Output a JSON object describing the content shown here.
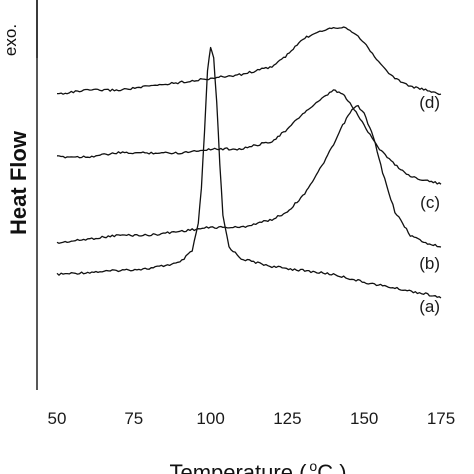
{
  "chart_data": {
    "type": "line",
    "title": "",
    "xlabel": "Temperature ( °C )",
    "xlabel_parts": {
      "prefix": "Temperature (",
      "superscript": "o",
      "unit": "C )"
    },
    "ylabel": "Heat Flow",
    "exo_label": "exo.",
    "xlim": [
      50,
      175
    ],
    "xticks": [
      50,
      75,
      100,
      125,
      150,
      175
    ],
    "yticks": false,
    "grid": false,
    "line_color": "#111111",
    "series": [
      {
        "name": "(a)",
        "x": [
          50,
          60,
          70,
          80,
          90,
          94,
          96,
          97,
          98,
          99,
          100,
          101,
          102,
          103,
          104,
          106,
          110,
          120,
          130,
          140,
          150,
          160,
          170,
          175
        ],
        "y": [
          0.3,
          0.305,
          0.31,
          0.315,
          0.33,
          0.36,
          0.43,
          0.52,
          0.66,
          0.82,
          0.88,
          0.85,
          0.74,
          0.58,
          0.45,
          0.37,
          0.34,
          0.32,
          0.31,
          0.3,
          0.28,
          0.265,
          0.25,
          0.24
        ]
      },
      {
        "name": "(b)",
        "x": [
          50,
          60,
          70,
          80,
          90,
          100,
          110,
          120,
          125,
          130,
          135,
          140,
          143,
          146,
          148,
          150,
          153,
          156,
          160,
          165,
          170,
          175
        ],
        "y": [
          0.38,
          0.39,
          0.4,
          0.4,
          0.41,
          0.42,
          0.42,
          0.44,
          0.46,
          0.5,
          0.56,
          0.63,
          0.68,
          0.72,
          0.73,
          0.71,
          0.65,
          0.56,
          0.46,
          0.4,
          0.38,
          0.37
        ]
      },
      {
        "name": "(c)",
        "x": [
          50,
          60,
          70,
          80,
          90,
          100,
          110,
          120,
          125,
          130,
          135,
          140,
          143,
          146,
          150,
          155,
          160,
          165,
          170,
          175
        ],
        "y": [
          0.6,
          0.6,
          0.61,
          0.61,
          0.61,
          0.62,
          0.62,
          0.64,
          0.67,
          0.71,
          0.74,
          0.77,
          0.76,
          0.73,
          0.68,
          0.62,
          0.58,
          0.55,
          0.54,
          0.53
        ]
      },
      {
        "name": "(d)",
        "x": [
          50,
          60,
          70,
          80,
          90,
          100,
          110,
          120,
          125,
          130,
          135,
          140,
          144,
          148,
          152,
          156,
          160,
          165,
          170,
          175
        ],
        "y": [
          0.76,
          0.77,
          0.77,
          0.78,
          0.79,
          0.8,
          0.81,
          0.83,
          0.86,
          0.9,
          0.92,
          0.93,
          0.93,
          0.91,
          0.87,
          0.83,
          0.8,
          0.78,
          0.77,
          0.76
        ]
      }
    ]
  }
}
